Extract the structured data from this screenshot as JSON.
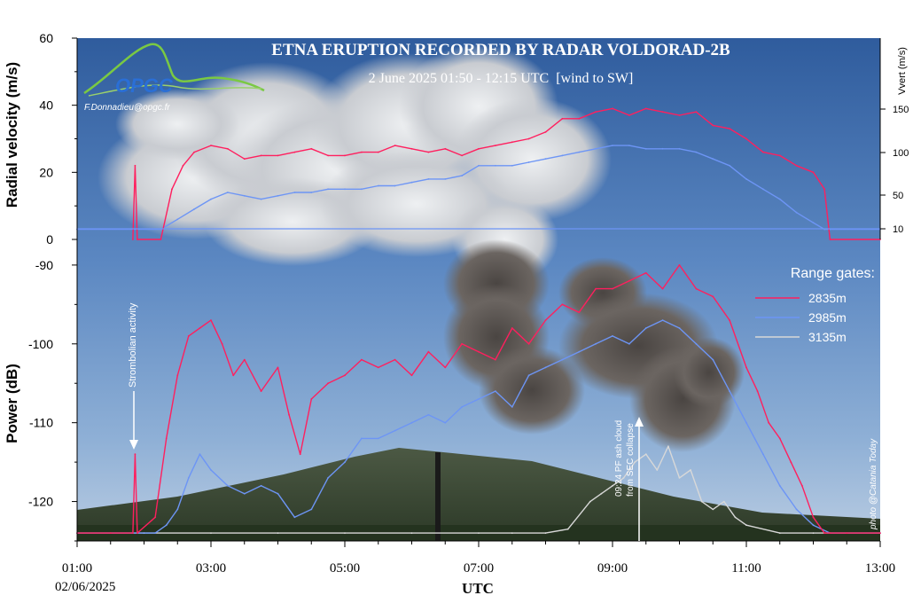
{
  "chart_data": {
    "type": "line",
    "title": "ETNA ERUPTION RECORDED BY RADAR VOLDORAD-2B",
    "subtitle": "2 June 2025 01:50 - 12:15 UTC  [wind to SW]",
    "logo_text": "OPGC",
    "credit": "F.Donnadieu@opgc.fr",
    "photo_credit": "photo @Catania Today",
    "xlabel": "UTC",
    "x_start_date": "02/06/2025",
    "x_ticks": [
      "01:00",
      "03:00",
      "05:00",
      "07:00",
      "09:00",
      "11:00",
      "13:00"
    ],
    "xlim": [
      "01:00",
      "13:00"
    ],
    "background_colors": {
      "sky": "#3f6fae",
      "cloud": "#d9dce0",
      "ash": "#5e5a57",
      "ground": "#3b4a32"
    },
    "legend_title": "Range gates:",
    "legend_position": "right",
    "series_colors": {
      "2835m": "#ff1f5e",
      "2985m": "#6d95f5",
      "3135m": "#d8d8d8"
    },
    "velocity_panel": {
      "ylabel": "Radial velocity (m/s)",
      "ylim": [
        0,
        60
      ],
      "y_ticks": [
        "0",
        "20",
        "40",
        "60"
      ],
      "right_axis_label": "Vvert (m/s)",
      "right_ticks": [
        "10",
        "50",
        "100",
        "150"
      ],
      "series": [
        {
          "name": "2835m",
          "x": [
            "01:50",
            "01:52",
            "01:54",
            "02:15",
            "02:25",
            "02:35",
            "02:45",
            "03:00",
            "03:15",
            "03:30",
            "03:45",
            "04:00",
            "04:15",
            "04:30",
            "04:45",
            "05:00",
            "05:15",
            "05:30",
            "05:45",
            "06:00",
            "06:15",
            "06:30",
            "06:45",
            "07:00",
            "07:15",
            "07:30",
            "07:45",
            "08:00",
            "08:15",
            "08:30",
            "08:45",
            "09:00",
            "09:15",
            "09:30",
            "09:45",
            "10:00",
            "10:15",
            "10:30",
            "10:45",
            "11:00",
            "11:15",
            "11:30",
            "11:45",
            "12:00",
            "12:10",
            "12:15",
            "13:00"
          ],
          "y": [
            0,
            22,
            0,
            0,
            15,
            22,
            26,
            28,
            27,
            24,
            25,
            25,
            26,
            27,
            25,
            25,
            26,
            26,
            28,
            27,
            26,
            27,
            25,
            27,
            28,
            29,
            30,
            32,
            36,
            36,
            38,
            39,
            37,
            39,
            38,
            37,
            38,
            34,
            33,
            30,
            26,
            25,
            22,
            20,
            15,
            0,
            0
          ]
        },
        {
          "name": "2985m",
          "x": [
            "01:00",
            "02:15",
            "02:30",
            "02:45",
            "03:00",
            "03:15",
            "03:30",
            "03:45",
            "04:00",
            "04:15",
            "04:30",
            "04:45",
            "05:00",
            "05:15",
            "05:30",
            "05:45",
            "06:00",
            "06:15",
            "06:30",
            "06:45",
            "07:00",
            "07:15",
            "07:30",
            "07:45",
            "08:00",
            "08:15",
            "08:30",
            "08:45",
            "09:00",
            "09:15",
            "09:30",
            "09:45",
            "10:00",
            "10:15",
            "10:30",
            "10:45",
            "11:00",
            "11:15",
            "11:30",
            "11:45",
            "12:00",
            "12:10",
            "12:15",
            "13:00"
          ],
          "y": [
            3,
            3,
            6,
            9,
            12,
            14,
            13,
            12,
            13,
            14,
            14,
            15,
            15,
            15,
            16,
            16,
            17,
            18,
            18,
            19,
            22,
            22,
            22,
            23,
            24,
            25,
            26,
            27,
            28,
            28,
            27,
            27,
            27,
            26,
            24,
            22,
            18,
            15,
            12,
            8,
            5,
            3,
            3,
            3
          ]
        }
      ]
    },
    "power_panel": {
      "ylabel": "Power (dB)",
      "ylim": [
        -125,
        -89
      ],
      "y_ticks": [
        "-90",
        "-100",
        "-110",
        "-120"
      ],
      "series": [
        {
          "name": "2835m",
          "x": [
            "01:00",
            "01:30",
            "01:50",
            "01:52",
            "01:54",
            "02:10",
            "02:20",
            "02:30",
            "02:40",
            "02:50",
            "03:00",
            "03:10",
            "03:20",
            "03:30",
            "03:45",
            "04:00",
            "04:10",
            "04:20",
            "04:30",
            "04:45",
            "05:00",
            "05:15",
            "05:30",
            "05:45",
            "06:00",
            "06:15",
            "06:30",
            "06:45",
            "07:00",
            "07:15",
            "07:30",
            "07:45",
            "08:00",
            "08:15",
            "08:30",
            "08:45",
            "09:00",
            "09:15",
            "09:30",
            "09:45",
            "10:00",
            "10:15",
            "10:30",
            "10:45",
            "11:00",
            "11:10",
            "11:20",
            "11:30",
            "11:40",
            "11:50",
            "12:00",
            "12:10",
            "12:15",
            "12:30",
            "13:00"
          ],
          "y": [
            -124,
            -124,
            -124,
            -114,
            -124,
            -122,
            -112,
            -104,
            -99,
            -98,
            -97,
            -100,
            -104,
            -102,
            -106,
            -103,
            -109,
            -114,
            -107,
            -105,
            -104,
            -102,
            -103,
            -102,
            -104,
            -101,
            -103,
            -100,
            -101,
            -102,
            -98,
            -100,
            -97,
            -95,
            -96,
            -93,
            -93,
            -92,
            -91,
            -93,
            -90,
            -93,
            -94,
            -97,
            -103,
            -106,
            -110,
            -112,
            -115,
            -118,
            -122,
            -124,
            -124,
            -124,
            -124
          ]
        },
        {
          "name": "2985m",
          "x": [
            "01:00",
            "02:10",
            "02:20",
            "02:30",
            "02:40",
            "02:50",
            "03:00",
            "03:15",
            "03:30",
            "03:45",
            "04:00",
            "04:15",
            "04:30",
            "04:45",
            "05:00",
            "05:15",
            "05:30",
            "05:45",
            "06:00",
            "06:15",
            "06:30",
            "06:45",
            "07:00",
            "07:15",
            "07:30",
            "07:45",
            "08:00",
            "08:15",
            "08:30",
            "08:45",
            "09:00",
            "09:15",
            "09:30",
            "09:45",
            "10:00",
            "10:15",
            "10:30",
            "10:45",
            "11:00",
            "11:15",
            "11:30",
            "11:45",
            "12:00",
            "12:15",
            "13:00"
          ],
          "y": [
            -124,
            -124,
            -123,
            -121,
            -117,
            -114,
            -116,
            -118,
            -119,
            -118,
            -119,
            -122,
            -121,
            -117,
            -115,
            -112,
            -112,
            -111,
            -110,
            -109,
            -110,
            -108,
            -107,
            -106,
            -108,
            -104,
            -103,
            -102,
            -101,
            -100,
            -99,
            -100,
            -98,
            -97,
            -98,
            -100,
            -102,
            -106,
            -110,
            -114,
            -118,
            -121,
            -123,
            -124,
            -124
          ]
        },
        {
          "name": "3135m",
          "x": [
            "01:00",
            "02:00",
            "03:00",
            "04:00",
            "05:00",
            "06:00",
            "07:00",
            "07:30",
            "08:00",
            "08:20",
            "08:40",
            "08:50",
            "09:00",
            "09:10",
            "09:20",
            "09:30",
            "09:40",
            "09:50",
            "10:00",
            "10:10",
            "10:20",
            "10:30",
            "10:40",
            "10:50",
            "11:00",
            "11:30",
            "12:00",
            "13:00"
          ],
          "y": [
            -124,
            -124,
            -124,
            -124,
            -124,
            -124,
            -124,
            -124,
            -124,
            -123.5,
            -120,
            -119,
            -118,
            -117,
            -115,
            -114,
            -116,
            -113,
            -117,
            -116,
            -120,
            -121,
            -120,
            -122,
            -123,
            -124,
            -124,
            -124
          ]
        }
      ]
    },
    "annotations": [
      {
        "text": "Strombolian activity",
        "x": "01:52",
        "y": -114
      },
      {
        "text": "09:24 PF ash cloud",
        "x": "09:24",
        "y": -123
      },
      {
        "text": "from SEC collapse",
        "x": "09:24",
        "y": -123
      }
    ]
  }
}
